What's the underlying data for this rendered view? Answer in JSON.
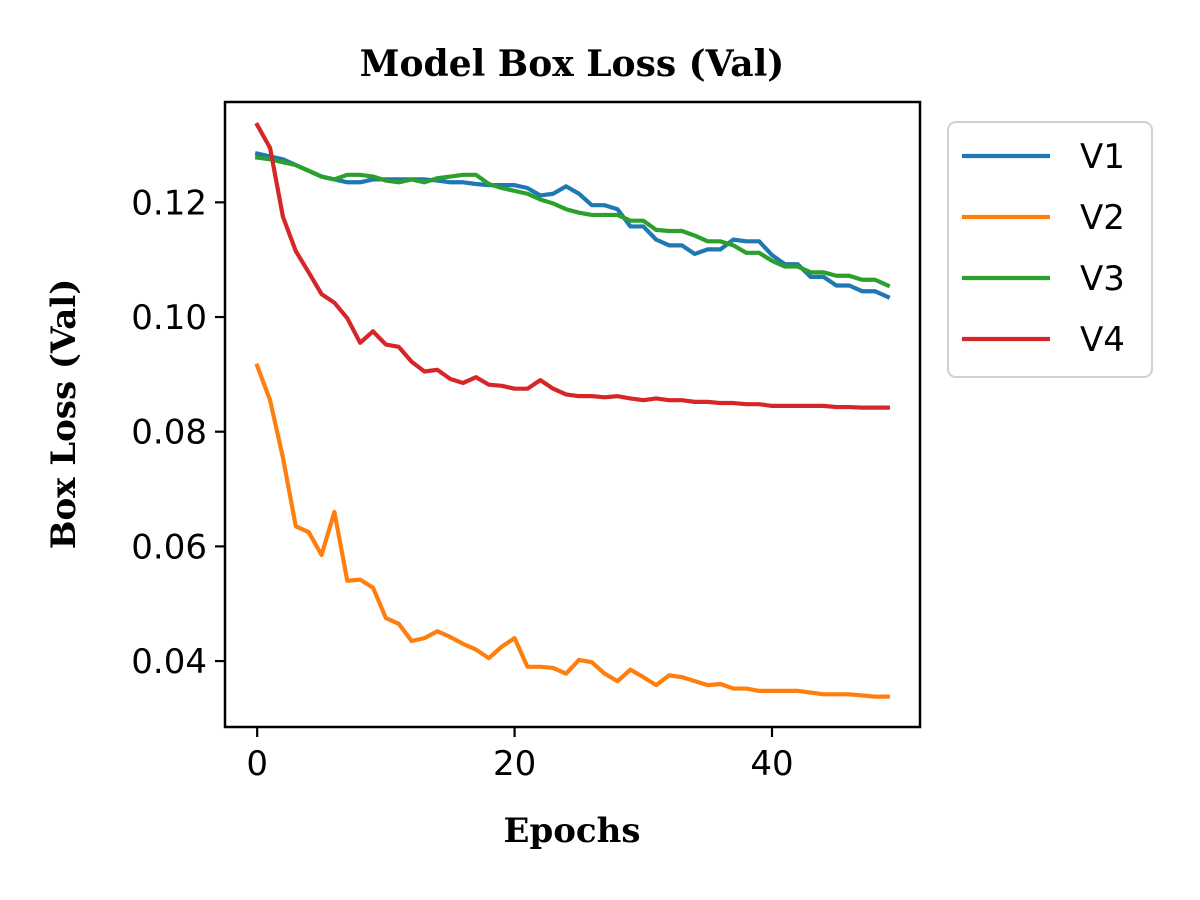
{
  "chart_data": {
    "type": "line",
    "title": "Model Box Loss (Val)",
    "xlabel": "Epochs",
    "ylabel": "Box Loss (Val)",
    "xlim": [
      -2.5,
      51.5
    ],
    "ylim": [
      0.0285,
      0.1375
    ],
    "xticks": [
      0,
      20,
      40
    ],
    "yticks": [
      0.04,
      0.06,
      0.08,
      0.1,
      0.12
    ],
    "ytick_labels": [
      "0.04",
      "0.06",
      "0.08",
      "0.10",
      "0.12"
    ],
    "legend_position": "outside-top-right",
    "grid": false,
    "x": [
      0,
      1,
      2,
      3,
      4,
      5,
      6,
      7,
      8,
      9,
      10,
      11,
      12,
      13,
      14,
      15,
      16,
      17,
      18,
      19,
      20,
      21,
      22,
      23,
      24,
      25,
      26,
      27,
      28,
      29,
      30,
      31,
      32,
      33,
      34,
      35,
      36,
      37,
      38,
      39,
      40,
      41,
      42,
      43,
      44,
      45,
      46,
      47,
      48,
      49
    ],
    "series": [
      {
        "name": "V1",
        "color": "#1f77b4",
        "values": [
          0.1285,
          0.128,
          0.1275,
          0.1265,
          0.1255,
          0.1245,
          0.124,
          0.1235,
          0.1235,
          0.124,
          0.124,
          0.124,
          0.124,
          0.124,
          0.1238,
          0.1235,
          0.1235,
          0.1232,
          0.123,
          0.123,
          0.123,
          0.1225,
          0.1212,
          0.1215,
          0.1228,
          0.1215,
          0.1195,
          0.1195,
          0.1188,
          0.1158,
          0.1158,
          0.1135,
          0.1125,
          0.1125,
          0.111,
          0.1118,
          0.1118,
          0.1135,
          0.1132,
          0.1132,
          0.1108,
          0.1092,
          0.1092,
          0.107,
          0.107,
          0.1055,
          0.1055,
          0.1045,
          0.1045,
          0.1035
        ]
      },
      {
        "name": "V2",
        "color": "#ff7f0e",
        "values": [
          0.0915,
          0.0855,
          0.0755,
          0.0635,
          0.0625,
          0.0585,
          0.066,
          0.054,
          0.0542,
          0.0528,
          0.0475,
          0.0465,
          0.0435,
          0.044,
          0.0452,
          0.0442,
          0.043,
          0.042,
          0.0405,
          0.0425,
          0.044,
          0.039,
          0.039,
          0.0388,
          0.0378,
          0.0402,
          0.0398,
          0.0378,
          0.0365,
          0.0385,
          0.0372,
          0.0358,
          0.0375,
          0.0372,
          0.0365,
          0.0358,
          0.036,
          0.0352,
          0.0352,
          0.0348,
          0.0348,
          0.0348,
          0.0348,
          0.0345,
          0.0342,
          0.0342,
          0.0342,
          0.034,
          0.0338,
          0.0338
        ]
      },
      {
        "name": "V3",
        "color": "#2ca02c",
        "values": [
          0.1278,
          0.1275,
          0.127,
          0.1265,
          0.1255,
          0.1245,
          0.124,
          0.1248,
          0.1248,
          0.1245,
          0.1238,
          0.1235,
          0.124,
          0.1235,
          0.1242,
          0.1245,
          0.1248,
          0.1248,
          0.1232,
          0.1225,
          0.122,
          0.1215,
          0.1205,
          0.1198,
          0.1188,
          0.1182,
          0.1178,
          0.1178,
          0.1178,
          0.1168,
          0.1168,
          0.1152,
          0.115,
          0.115,
          0.1142,
          0.1132,
          0.1132,
          0.1125,
          0.1112,
          0.1112,
          0.1098,
          0.1088,
          0.1088,
          0.1078,
          0.1078,
          0.1072,
          0.1072,
          0.1065,
          0.1065,
          0.1055
        ]
      },
      {
        "name": "V4",
        "color": "#d62728",
        "values": [
          0.1335,
          0.1295,
          0.1175,
          0.1115,
          0.1078,
          0.104,
          0.1025,
          0.0998,
          0.0955,
          0.0975,
          0.0952,
          0.0948,
          0.0922,
          0.0905,
          0.0908,
          0.0892,
          0.0885,
          0.0895,
          0.0882,
          0.088,
          0.0875,
          0.0875,
          0.089,
          0.0875,
          0.0865,
          0.0862,
          0.0862,
          0.086,
          0.0862,
          0.0858,
          0.0855,
          0.0858,
          0.0855,
          0.0855,
          0.0852,
          0.0852,
          0.085,
          0.085,
          0.0848,
          0.0848,
          0.0845,
          0.0845,
          0.0845,
          0.0845,
          0.0845,
          0.0843,
          0.0843,
          0.0842,
          0.0842,
          0.0842
        ]
      }
    ]
  }
}
